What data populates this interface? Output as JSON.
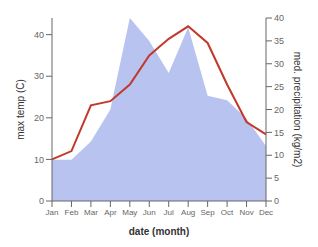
{
  "chart_data": {
    "type": "line",
    "categories": [
      "Jan",
      "Feb",
      "Mar",
      "Apr",
      "May",
      "Jun",
      "Jul",
      "Aug",
      "Sep",
      "Oct",
      "Nov",
      "Dec"
    ],
    "xlabel": "date (month)",
    "ylabel": "max temp (C)",
    "y2label": "med. precipitation (kg/m2)",
    "ylim": [
      0,
      44
    ],
    "yticks": [
      0,
      10,
      20,
      30,
      40
    ],
    "y2lim": [
      0,
      40
    ],
    "y2ticks": [
      0,
      5,
      10,
      15,
      20,
      25,
      30,
      35,
      40
    ],
    "grid": false,
    "series": [
      {
        "type": "area",
        "axis": "y2",
        "color": "#b0bcee",
        "values": [
          9,
          9,
          13,
          20,
          40,
          35,
          28,
          38,
          23,
          22,
          18,
          12
        ]
      },
      {
        "type": "line",
        "axis": "y",
        "color": "#c0392b",
        "values": [
          10,
          12,
          23,
          24,
          28,
          35,
          39,
          42,
          38,
          28,
          19,
          16
        ]
      }
    ]
  }
}
